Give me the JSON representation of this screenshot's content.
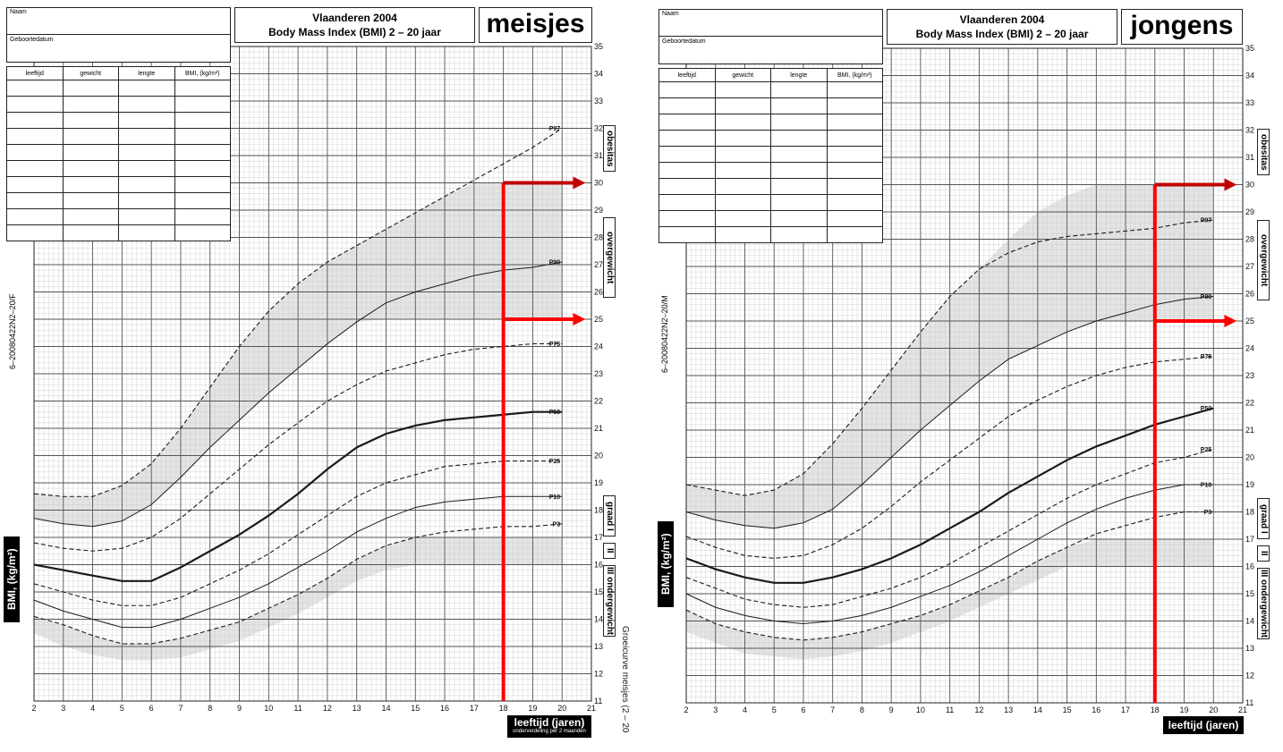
{
  "panels": [
    {
      "id": "girls",
      "name_label": "Naam",
      "dob_label": "Geboortedatum",
      "title_line1": "Vlaanderen 2004",
      "title_line2": "Body Mass Index (BMI) 2 – 20 jaar",
      "sex": "meisjes",
      "table_headers": [
        "leeftijd",
        "gewicht",
        "lengte",
        "BMI,  (kg/m²)"
      ],
      "side_labels": {
        "obese": "obesitas",
        "over": "overgewicht",
        "grade1": "graad I",
        "grade2": "II",
        "grade3": "III",
        "under": "ondergewicht"
      },
      "code": "6–20080422N2–20/F",
      "ylabel": "BMI,  (kg/m²)",
      "xlabel": "leeftijd (jaren)",
      "xlabel_sub": "onderverdeling per 2 maanden",
      "footer": "Groeicurve meisjes (2 – 20",
      "chart_data": {
        "type": "line",
        "xlim": [
          2,
          21
        ],
        "ylim": [
          11,
          35
        ],
        "xticks": [
          2,
          3,
          4,
          5,
          6,
          7,
          8,
          9,
          10,
          11,
          12,
          13,
          14,
          15,
          16,
          17,
          18,
          19,
          20,
          21
        ],
        "yticks": [
          11,
          12,
          13,
          14,
          15,
          16,
          17,
          18,
          19,
          20,
          21,
          22,
          23,
          24,
          25,
          26,
          27,
          28,
          29,
          30,
          31,
          32,
          33,
          34,
          35
        ],
        "grid": true,
        "x": [
          2,
          3,
          4,
          5,
          6,
          7,
          8,
          9,
          10,
          11,
          12,
          13,
          14,
          15,
          16,
          17,
          18,
          19,
          20
        ],
        "series": [
          {
            "name": "P97",
            "dashed": true,
            "width": 1.1,
            "values": [
              18.6,
              18.5,
              18.5,
              18.9,
              19.7,
              21.0,
              22.5,
              24.0,
              25.3,
              26.3,
              27.1,
              27.7,
              28.3,
              28.9,
              29.5,
              30.1,
              30.7,
              31.3,
              32.0
            ]
          },
          {
            "name": "P90",
            "dashed": false,
            "width": 1.0,
            "values": [
              17.7,
              17.5,
              17.4,
              17.6,
              18.2,
              19.2,
              20.3,
              21.3,
              22.3,
              23.2,
              24.1,
              24.9,
              25.6,
              26.0,
              26.3,
              26.6,
              26.8,
              26.9,
              27.1
            ]
          },
          {
            "name": "P75",
            "dashed": true,
            "width": 1.1,
            "values": [
              16.8,
              16.6,
              16.5,
              16.6,
              17.0,
              17.7,
              18.6,
              19.5,
              20.4,
              21.2,
              22.0,
              22.6,
              23.1,
              23.4,
              23.7,
              23.9,
              24.0,
              24.1,
              24.1
            ]
          },
          {
            "name": "P50",
            "dashed": false,
            "width": 2.2,
            "values": [
              16.0,
              15.8,
              15.6,
              15.4,
              15.4,
              15.9,
              16.5,
              17.1,
              17.8,
              18.6,
              19.5,
              20.3,
              20.8,
              21.1,
              21.3,
              21.4,
              21.5,
              21.6,
              21.6
            ]
          },
          {
            "name": "P25",
            "dashed": true,
            "width": 1.1,
            "values": [
              15.3,
              15.0,
              14.7,
              14.5,
              14.5,
              14.8,
              15.3,
              15.8,
              16.4,
              17.1,
              17.8,
              18.5,
              19.0,
              19.3,
              19.6,
              19.7,
              19.8,
              19.8,
              19.8
            ]
          },
          {
            "name": "P10",
            "dashed": false,
            "width": 1.0,
            "values": [
              14.7,
              14.3,
              14.0,
              13.7,
              13.7,
              14.0,
              14.4,
              14.8,
              15.3,
              15.9,
              16.5,
              17.2,
              17.7,
              18.1,
              18.3,
              18.4,
              18.5,
              18.5,
              18.5
            ]
          },
          {
            "name": "P3",
            "dashed": true,
            "width": 1.1,
            "values": [
              14.1,
              13.8,
              13.4,
              13.1,
              13.1,
              13.3,
              13.6,
              13.9,
              14.4,
              14.9,
              15.5,
              16.2,
              16.7,
              17.0,
              17.2,
              17.3,
              17.4,
              17.4,
              17.5
            ]
          }
        ],
        "bands": [
          {
            "x": [
              2,
              3,
              4,
              5,
              6,
              7,
              8,
              9,
              10,
              11,
              12,
              13,
              14,
              15,
              16,
              17,
              18,
              19,
              20
            ],
            "lower": [
              17.7,
              17.5,
              17.4,
              17.6,
              18.2,
              19.2,
              20.3,
              21.3,
              22.3,
              23.2,
              24.1,
              24.9,
              25.0,
              25.0,
              25.0,
              25.0,
              25.0,
              25.0,
              25.0
            ],
            "upper": [
              18.6,
              18.5,
              18.5,
              18.9,
              19.7,
              21.0,
              22.5,
              24.0,
              25.3,
              26.3,
              27.1,
              27.7,
              28.3,
              28.9,
              29.5,
              30.0,
              30.0,
              30.0,
              30.0
            ]
          },
          {
            "x": [
              2,
              3,
              4,
              5,
              6,
              7,
              8,
              9,
              10,
              11,
              12,
              13,
              14,
              15,
              16,
              17,
              18,
              19,
              20
            ],
            "lower": [
              13.5,
              13.0,
              12.7,
              12.5,
              12.5,
              12.6,
              12.9,
              13.2,
              13.7,
              14.2,
              14.8,
              15.4,
              15.8,
              16.0,
              16.0,
              16.0,
              16.0,
              16.0,
              16.0
            ],
            "upper": [
              14.1,
              13.8,
              13.4,
              13.1,
              13.1,
              13.3,
              13.6,
              13.9,
              14.4,
              14.9,
              15.5,
              16.2,
              16.7,
              17.0,
              17.0,
              17.0,
              17.0,
              17.0,
              17.0
            ]
          }
        ],
        "annotations": [
          {
            "type": "vertical-line",
            "x": 18,
            "color": "#ff0000"
          },
          {
            "type": "arrow",
            "x_from": 18,
            "x_to": 20.8,
            "y": 30,
            "color": "#c00000"
          },
          {
            "type": "arrow",
            "x_from": 18,
            "x_to": 20.8,
            "y": 25,
            "color": "#ff0000"
          }
        ]
      }
    },
    {
      "id": "boys",
      "name_label": "Naam",
      "dob_label": "Geboortedatum",
      "title_line1": "Vlaanderen 2004",
      "title_line2": "Body Mass Index (BMI) 2 – 20 jaar",
      "sex": "jongens",
      "table_headers": [
        "leeftijd",
        "gewicht",
        "lengte",
        "BMI,  (kg/m²)"
      ],
      "side_labels": {
        "obese": "obesitas",
        "over": "overgewicht",
        "grade1": "graad I",
        "grade2": "II",
        "grade3": "III",
        "under": "ondergewicht"
      },
      "code": "6–20080422N2–20/M",
      "ylabel": "BMI,  (kg/m²)",
      "xlabel": "leeftijd (jaren)",
      "xlabel_sub": "",
      "footer": "",
      "chart_data": {
        "type": "line",
        "xlim": [
          2,
          21
        ],
        "ylim": [
          11,
          35
        ],
        "xticks": [
          2,
          3,
          4,
          5,
          6,
          7,
          8,
          9,
          10,
          11,
          12,
          13,
          14,
          15,
          16,
          17,
          18,
          19,
          20,
          21
        ],
        "yticks": [
          11,
          12,
          13,
          14,
          15,
          16,
          17,
          18,
          19,
          20,
          21,
          22,
          23,
          24,
          25,
          26,
          27,
          28,
          29,
          30,
          31,
          32,
          33,
          34,
          35
        ],
        "grid": true,
        "x": [
          2,
          3,
          4,
          5,
          6,
          7,
          8,
          9,
          10,
          11,
          12,
          13,
          14,
          15,
          16,
          17,
          18,
          19,
          20
        ],
        "series": [
          {
            "name": "P97",
            "dashed": true,
            "width": 1.1,
            "values": [
              19.0,
              18.8,
              18.6,
              18.8,
              19.4,
              20.5,
              21.8,
              23.2,
              24.6,
              25.9,
              26.9,
              27.5,
              27.9,
              28.1,
              28.2,
              28.3,
              28.4,
              28.6,
              28.7
            ]
          },
          {
            "name": "P90",
            "dashed": false,
            "width": 1.0,
            "values": [
              18.0,
              17.7,
              17.5,
              17.4,
              17.6,
              18.1,
              19.0,
              20.0,
              21.0,
              21.9,
              22.8,
              23.6,
              24.1,
              24.6,
              25.0,
              25.3,
              25.6,
              25.8,
              25.9
            ]
          },
          {
            "name": "P75",
            "dashed": true,
            "width": 1.1,
            "values": [
              17.1,
              16.7,
              16.4,
              16.3,
              16.4,
              16.8,
              17.4,
              18.2,
              19.1,
              19.9,
              20.7,
              21.5,
              22.1,
              22.6,
              23.0,
              23.3,
              23.5,
              23.6,
              23.7
            ]
          },
          {
            "name": "P50",
            "dashed": false,
            "width": 2.2,
            "values": [
              16.3,
              15.9,
              15.6,
              15.4,
              15.4,
              15.6,
              15.9,
              16.3,
              16.8,
              17.4,
              18.0,
              18.7,
              19.3,
              19.9,
              20.4,
              20.8,
              21.2,
              21.5,
              21.8
            ]
          },
          {
            "name": "P25",
            "dashed": true,
            "width": 1.1,
            "values": [
              15.6,
              15.2,
              14.8,
              14.6,
              14.5,
              14.6,
              14.9,
              15.2,
              15.6,
              16.1,
              16.7,
              17.3,
              17.9,
              18.5,
              19.0,
              19.4,
              19.8,
              20.0,
              20.3
            ]
          },
          {
            "name": "P10",
            "dashed": false,
            "width": 1.0,
            "values": [
              15.0,
              14.5,
              14.2,
              14.0,
              13.9,
              14.0,
              14.2,
              14.5,
              14.9,
              15.3,
              15.8,
              16.4,
              17.0,
              17.6,
              18.1,
              18.5,
              18.8,
              19.0,
              19.0
            ]
          },
          {
            "name": "P3",
            "dashed": true,
            "width": 1.1,
            "values": [
              14.4,
              13.9,
              13.6,
              13.4,
              13.3,
              13.4,
              13.6,
              13.9,
              14.2,
              14.6,
              15.1,
              15.6,
              16.2,
              16.7,
              17.2,
              17.5,
              17.8,
              18.0,
              18.0
            ]
          }
        ],
        "bands": [
          {
            "x": [
              2,
              3,
              4,
              5,
              6,
              7,
              8,
              9,
              10,
              11,
              12,
              13,
              14,
              15,
              16,
              17,
              18,
              19,
              20
            ],
            "lower": [
              18.0,
              17.7,
              17.5,
              17.4,
              17.6,
              18.1,
              19.0,
              20.0,
              21.0,
              21.9,
              22.8,
              23.6,
              24.1,
              24.6,
              25.0,
              25.0,
              25.0,
              25.0,
              25.0
            ],
            "upper": [
              19.0,
              18.8,
              18.6,
              18.8,
              19.4,
              20.5,
              21.8,
              23.2,
              24.6,
              25.9,
              26.9,
              28.0,
              29.0,
              29.6,
              30.0,
              30.0,
              30.0,
              30.0,
              30.0
            ]
          },
          {
            "x": [
              2,
              3,
              4,
              5,
              6,
              7,
              8,
              9,
              10,
              11,
              12,
              13,
              14,
              15,
              16,
              17,
              18,
              19,
              20
            ],
            "lower": [
              13.6,
              13.2,
              12.8,
              12.7,
              12.6,
              12.7,
              12.9,
              13.2,
              13.6,
              14.0,
              14.5,
              15.0,
              15.5,
              16.0,
              16.0,
              16.0,
              16.0,
              16.0,
              16.0
            ],
            "upper": [
              14.4,
              13.9,
              13.6,
              13.4,
              13.3,
              13.4,
              13.6,
              13.9,
              14.2,
              14.6,
              15.1,
              15.6,
              16.2,
              16.7,
              17.0,
              17.0,
              17.0,
              17.0,
              17.0
            ]
          }
        ],
        "annotations": [
          {
            "type": "vertical-line",
            "x": 18,
            "color": "#ff0000"
          },
          {
            "type": "arrow",
            "x_from": 18,
            "x_to": 20.8,
            "y": 30,
            "color": "#c00000"
          },
          {
            "type": "arrow",
            "x_from": 18,
            "x_to": 20.8,
            "y": 25,
            "color": "#ff0000"
          }
        ]
      }
    }
  ]
}
